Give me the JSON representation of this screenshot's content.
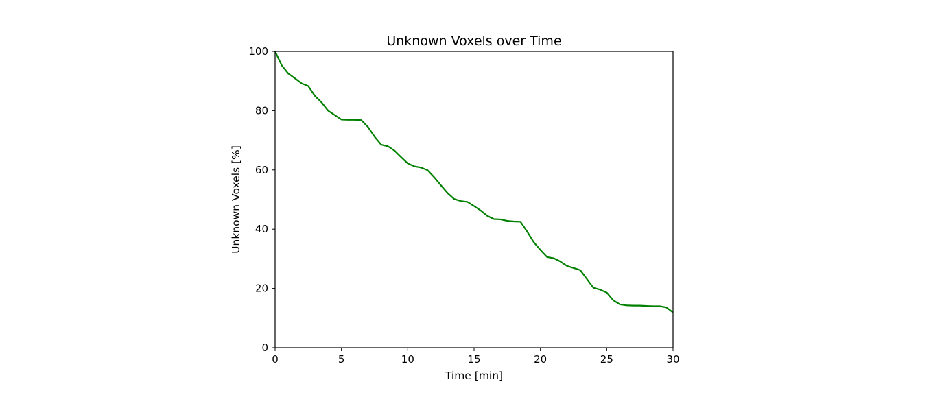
{
  "chart_data": {
    "type": "line",
    "title": "Unknown Voxels over Time",
    "xlabel": "Time [min]",
    "ylabel": "Unknown Voxels [%]",
    "xlim": [
      0,
      30
    ],
    "ylim": [
      0,
      100
    ],
    "xticks": [
      "0",
      "5",
      "10",
      "15",
      "20",
      "25",
      "30"
    ],
    "yticks": [
      "0",
      "20",
      "40",
      "60",
      "80",
      "100"
    ],
    "grid": false,
    "series": [
      {
        "color": "#008000",
        "x": [
          0,
          0.5,
          1,
          1.5,
          2,
          2.5,
          3,
          3.5,
          4,
          4.5,
          5,
          5.5,
          6,
          6.5,
          7,
          7.5,
          8,
          8.5,
          9,
          9.5,
          10,
          10.5,
          11,
          11.5,
          12,
          12.5,
          13,
          13.5,
          14,
          14.5,
          15,
          15.5,
          16,
          16.5,
          17,
          17.5,
          18,
          18.5,
          19,
          19.5,
          20,
          20.5,
          21,
          21.5,
          22,
          22.5,
          23,
          23.5,
          24,
          24.5,
          25,
          25.5,
          26,
          26.5,
          27,
          27.5,
          28,
          28.5,
          29,
          29.5,
          30
        ],
        "y": [
          100,
          95.3,
          92.5,
          90.9,
          89.2,
          88.3,
          85.0,
          82.8,
          80.0,
          78.5,
          77.0,
          76.9,
          76.9,
          76.8,
          74.5,
          71.2,
          68.5,
          68.0,
          66.5,
          64.3,
          62.2,
          61.2,
          60.8,
          59.9,
          57.5,
          54.8,
          52.2,
          50.2,
          49.5,
          49.2,
          47.8,
          46.3,
          44.5,
          43.4,
          43.3,
          42.8,
          42.6,
          42.5,
          39.2,
          35.6,
          33.0,
          30.6,
          30.2,
          29.1,
          27.6,
          26.9,
          26.2,
          23.2,
          20.2,
          19.6,
          18.6,
          16.0,
          14.6,
          14.3,
          14.2,
          14.2,
          14.1,
          14.0,
          14.0,
          13.6,
          11.9
        ]
      }
    ]
  }
}
